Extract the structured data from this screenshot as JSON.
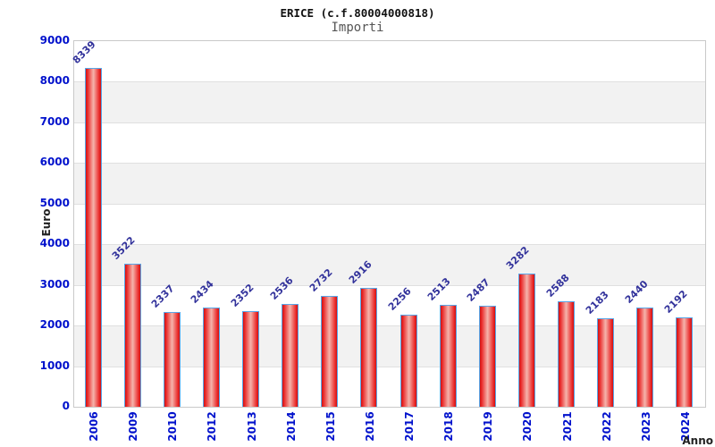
{
  "header": {
    "title": "ERICE (c.f.80004000818)",
    "subtitle": "Importi"
  },
  "chart_data": {
    "type": "bar",
    "title": "ERICE (c.f.80004000818)",
    "subtitle": "Importi",
    "xlabel": "Anno",
    "ylabel": "Euro",
    "categories": [
      "2006",
      "2009",
      "2010",
      "2012",
      "2013",
      "2014",
      "2015",
      "2016",
      "2017",
      "2018",
      "2019",
      "2020",
      "2021",
      "2022",
      "2023",
      "2024"
    ],
    "values": [
      8339,
      3522,
      2337,
      2434,
      2352,
      2536,
      2732,
      2916,
      2256,
      2513,
      2487,
      3282,
      2588,
      2183,
      2440,
      2192
    ],
    "ylim": [
      0,
      9000
    ],
    "ytick_step": 1000,
    "yticks": [
      0,
      1000,
      2000,
      3000,
      4000,
      5000,
      6000,
      7000,
      8000,
      9000
    ],
    "legend": "none",
    "grid": "alternating-horizontal-bands",
    "colors": {
      "bar_edge": "#cf1212",
      "bar_mid": "#ea2b2b",
      "bar_center": "#f5b4ac",
      "bar_border": "#58a6e8",
      "tick_label": "#0011cc",
      "value_label": "#32329b",
      "band_gray": "#f2f2f2",
      "band_white": "#ffffff",
      "gridline": "#e0e0e0",
      "plot_border": "#c9c9c9",
      "title_color": "#111111",
      "subtitle_color": "#555555",
      "axis_title_color": "#222222"
    }
  }
}
